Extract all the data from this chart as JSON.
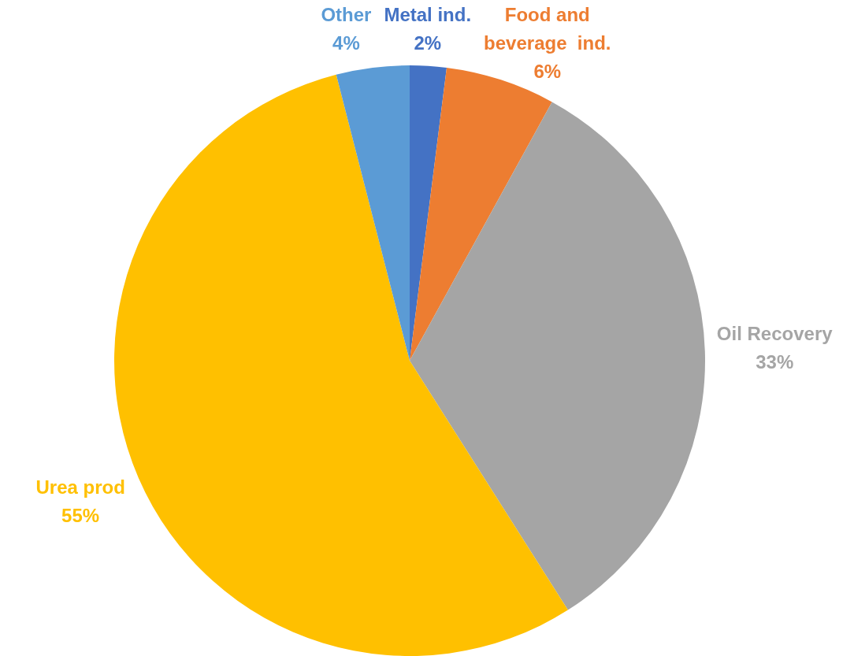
{
  "chart_data": {
    "type": "pie",
    "categories": [
      "Metal ind.",
      "Food and beverage  ind.",
      "Oil Recovery",
      "Urea prod",
      "Other"
    ],
    "values": [
      2,
      6,
      33,
      55,
      4
    ],
    "colors": [
      "#4472c4",
      "#ed7d31",
      "#a5a5a5",
      "#ffc000",
      "#5b9bd5"
    ],
    "value_labels": [
      "2%",
      "6%",
      "33%",
      "55%",
      "4%"
    ],
    "legend": false
  }
}
